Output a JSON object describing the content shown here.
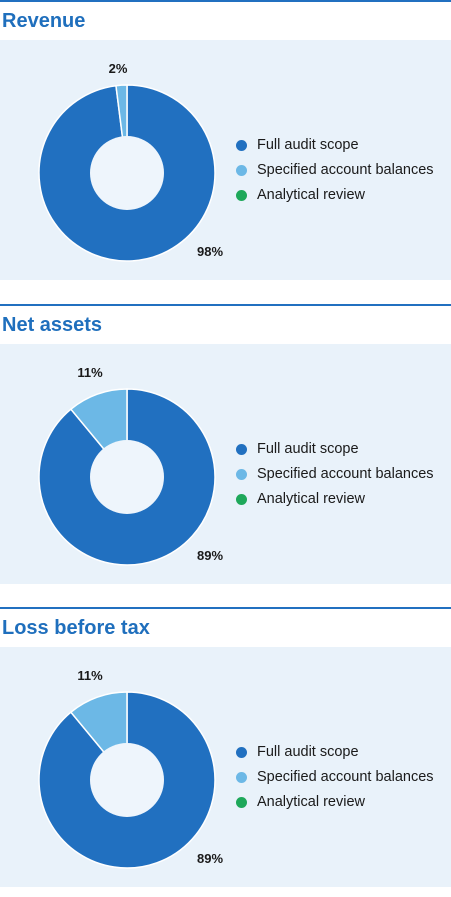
{
  "colors": {
    "full_audit": "#2170c0",
    "specified": "#6cb8e6",
    "analytical": "#1ea85a",
    "hole": "#eef5fc",
    "panel": "#e9f2fa",
    "title": "#1f6fbd"
  },
  "legend": [
    "Full audit scope",
    "Specified account balances",
    "Analytical review"
  ],
  "chart_data": [
    {
      "type": "pie",
      "title": "Revenue",
      "categories": [
        "Full audit scope",
        "Specified account balances",
        "Analytical review"
      ],
      "values": [
        98,
        2,
        0
      ],
      "labels": [
        "98%",
        "2%",
        ""
      ]
    },
    {
      "type": "pie",
      "title": "Net assets",
      "categories": [
        "Full audit scope",
        "Specified account balances",
        "Analytical review"
      ],
      "values": [
        89,
        11,
        0
      ],
      "labels": [
        "89%",
        "11%",
        ""
      ]
    },
    {
      "type": "pie",
      "title": "Loss before tax",
      "categories": [
        "Full audit scope",
        "Specified account balances",
        "Analytical review"
      ],
      "values": [
        89,
        11,
        0
      ],
      "labels": [
        "89%",
        "11%",
        ""
      ]
    }
  ]
}
